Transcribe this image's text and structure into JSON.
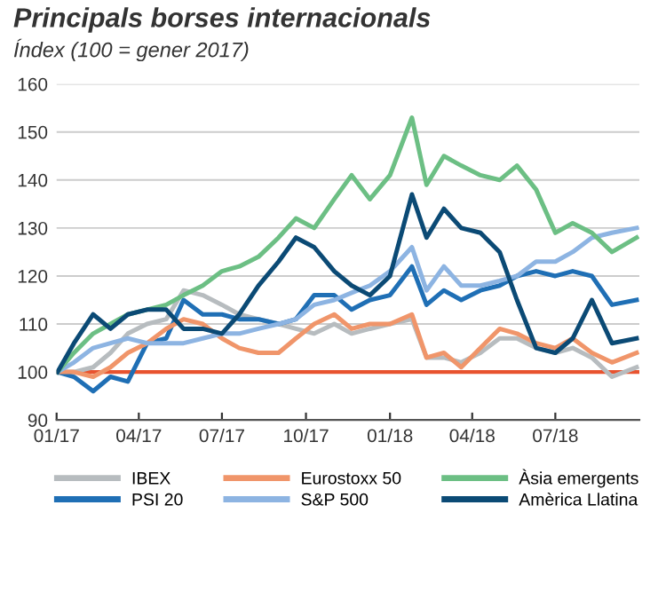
{
  "chart_data": {
    "type": "line",
    "title": "Principals borses internacionals",
    "subtitle": "Índex (100 = gener 2017)",
    "x": [
      "2017-01-02",
      "2017-01-20",
      "2017-02-10",
      "2017-03-01",
      "2017-03-20",
      "2017-04-10",
      "2017-05-01",
      "2017-05-20",
      "2017-06-10",
      "2017-07-01",
      "2017-07-20",
      "2017-08-10",
      "2017-09-01",
      "2017-09-20",
      "2017-10-10",
      "2017-11-01",
      "2017-11-20",
      "2017-12-10",
      "2018-01-01",
      "2018-01-25",
      "2018-02-10",
      "2018-03-01",
      "2018-03-20",
      "2018-04-10",
      "2018-05-01",
      "2018-05-20",
      "2018-06-10",
      "2018-07-01",
      "2018-07-20",
      "2018-08-10",
      "2018-09-01",
      "2018-09-28"
    ],
    "series": [
      {
        "name": "IBEX",
        "color": "#b7bcbf",
        "values": [
          100,
          100,
          101,
          104,
          108,
          110,
          111,
          117,
          116,
          114,
          112,
          111,
          110,
          109,
          108,
          110,
          108,
          109,
          110,
          111,
          103,
          103,
          102,
          104,
          107,
          107,
          105,
          104,
          105,
          103,
          99,
          101
        ]
      },
      {
        "name": "PSI 20",
        "color": "#1f6fb5",
        "values": [
          100,
          99,
          96,
          99,
          98,
          106,
          107,
          115,
          112,
          112,
          111,
          111,
          110,
          111,
          116,
          116,
          113,
          115,
          116,
          122,
          114,
          117,
          115,
          117,
          118,
          120,
          121,
          120,
          121,
          120,
          114,
          115
        ]
      },
      {
        "name": "Eurostoxx 50",
        "color": "#f0956a",
        "values": [
          100,
          100,
          99,
          101,
          104,
          106,
          109,
          111,
          110,
          107,
          105,
          104,
          104,
          107,
          110,
          112,
          109,
          110,
          110,
          112,
          103,
          104,
          101,
          105,
          109,
          108,
          106,
          105,
          107,
          104,
          102,
          104
        ]
      },
      {
        "name": "S&P 500",
        "color": "#8db4e2",
        "values": [
          100,
          102,
          105,
          106,
          107,
          106,
          106,
          106,
          107,
          108,
          108,
          109,
          110,
          111,
          114,
          115,
          116.5,
          118,
          121,
          126,
          117,
          122,
          118,
          118,
          119,
          120,
          123,
          123,
          125,
          128,
          129,
          130
        ]
      },
      {
        "name": "Àsia emergents",
        "color": "#6cbf84",
        "values": [
          100,
          104,
          108,
          110,
          112,
          113,
          114,
          116,
          118,
          121,
          122,
          124,
          128,
          132,
          130,
          136,
          141,
          136,
          141,
          153,
          139,
          145,
          143,
          141,
          140,
          143,
          138,
          129,
          131,
          129,
          125,
          128
        ]
      },
      {
        "name": "Amèrica Llatina",
        "color": "#0b4a75",
        "values": [
          100,
          106,
          112,
          109,
          112,
          113,
          113,
          109,
          109,
          108,
          112,
          118,
          123,
          128,
          126,
          121,
          118,
          116,
          120,
          137,
          128,
          134,
          130,
          129,
          125,
          115,
          105,
          104,
          107,
          115,
          106,
          107
        ]
      }
    ],
    "xlim": [
      "2017-01-01",
      "2018-10-01"
    ],
    "xticks": [
      {
        "value": "2017-01-01",
        "label": "01/17"
      },
      {
        "value": "2017-04-01",
        "label": "04/17"
      },
      {
        "value": "2017-07-01",
        "label": "07/17"
      },
      {
        "value": "2017-10-01",
        "label": "10/17"
      },
      {
        "value": "2018-01-01",
        "label": "01/18"
      },
      {
        "value": "2018-04-01",
        "label": "04/18"
      },
      {
        "value": "2018-07-01",
        "label": "07/18"
      }
    ],
    "ylim": [
      90,
      160
    ],
    "yticks": [
      90,
      100,
      110,
      120,
      130,
      140,
      150,
      160
    ],
    "ref_lines": [
      {
        "axis": "y",
        "value": 100,
        "color": "#e8532f"
      }
    ],
    "grid": "y",
    "legend": "bottom",
    "marker": "none",
    "line_style": "solid"
  }
}
